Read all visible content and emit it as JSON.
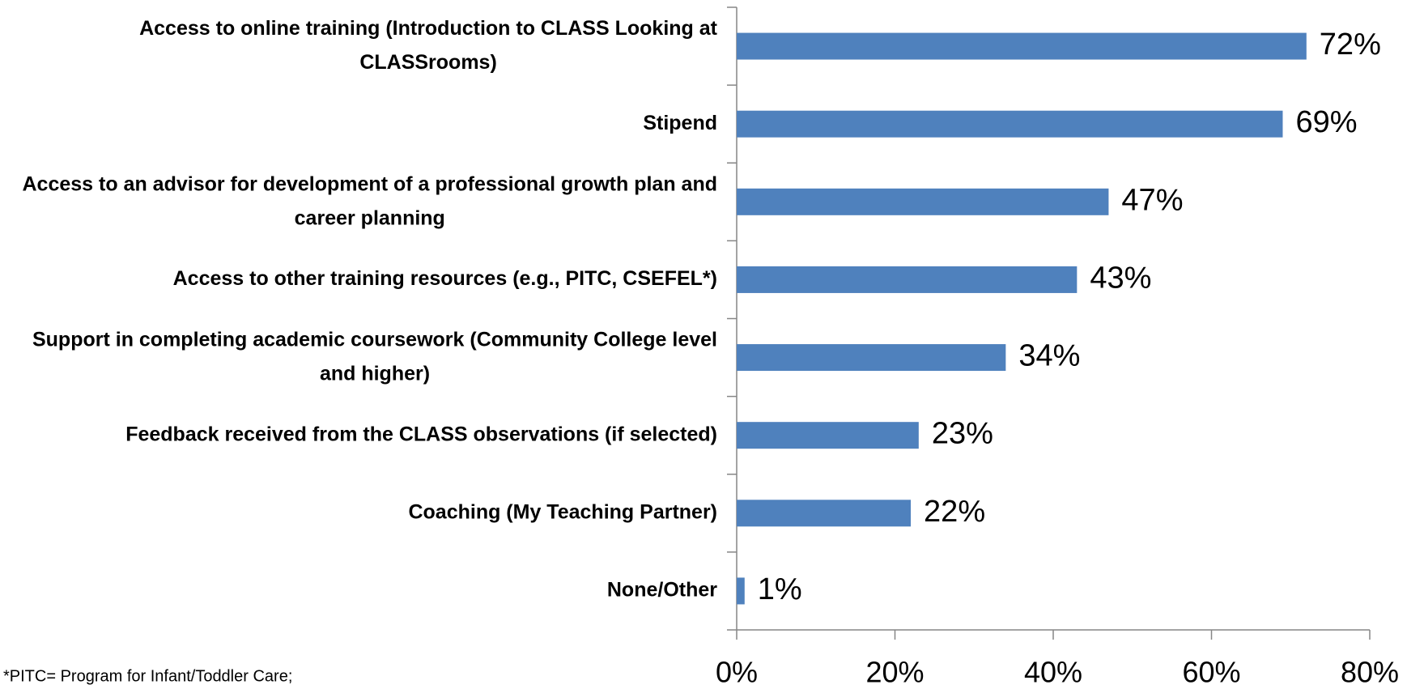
{
  "chart_data": {
    "type": "bar",
    "orientation": "horizontal",
    "categories": [
      "Access to online training (Introduction to CLASS Looking at CLASSrooms)",
      "Stipend",
      "Access to an advisor for development of a professional growth plan and career planning",
      "Access to other training resources (e.g., PITC, CSEFEL*)",
      "Support in completing academic coursework (Community College level and higher)",
      "Feedback received from the CLASS observations (if selected)",
      "Coaching (My Teaching Partner)",
      "None/Other"
    ],
    "values": [
      72,
      69,
      47,
      43,
      34,
      23,
      22,
      1
    ],
    "value_labels": [
      "72%",
      "69%",
      "47%",
      "43%",
      "34%",
      "23%",
      "22%",
      "1%"
    ],
    "color": "#4f81bd",
    "xlim": [
      0,
      80
    ],
    "xticks": [
      {
        "value": 0,
        "label": "0%"
      },
      {
        "value": 20,
        "label": "20%"
      },
      {
        "value": 40,
        "label": "40%"
      },
      {
        "value": 60,
        "label": "60%"
      },
      {
        "value": 80,
        "label": "80%"
      }
    ],
    "grid": false,
    "footnote": "*PITC= Program for Infant/Toddler Care;"
  }
}
